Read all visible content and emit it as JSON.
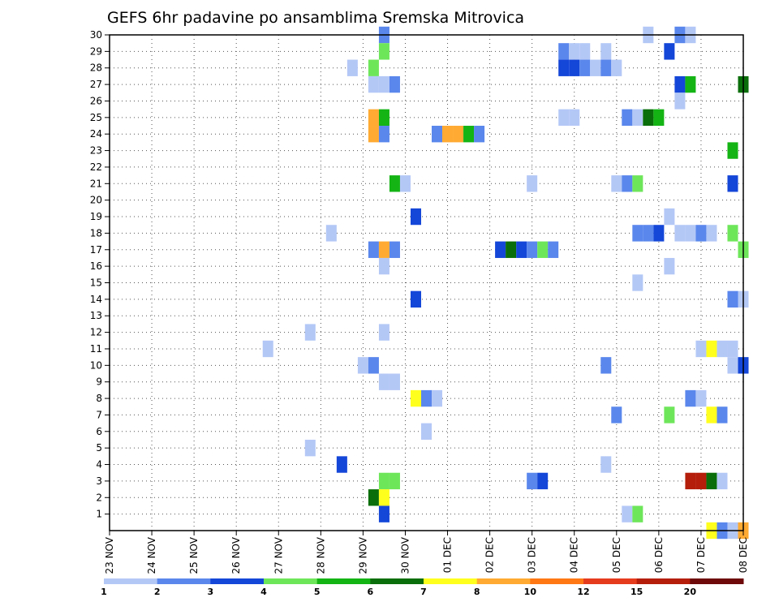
{
  "chart_data": {
    "type": "heatmap",
    "title": "GEFS 6hr padavine po ansamblima Sremska Mitrovica",
    "xlabel": "",
    "ylabel": "",
    "x_tick_labels": [
      "23 NOV",
      "24 NOV",
      "25 NOV",
      "26 NOV",
      "27 NOV",
      "28 NOV",
      "29 NOV",
      "30 NOV",
      "01 DEC",
      "02 DEC",
      "03 DEC",
      "04 DEC",
      "05 DEC",
      "06 DEC",
      "07 DEC",
      "08 DEC"
    ],
    "y_tick_labels": [
      "1",
      "2",
      "3",
      "4",
      "5",
      "6",
      "7",
      "8",
      "9",
      "10",
      "11",
      "12",
      "13",
      "14",
      "15",
      "16",
      "17",
      "18",
      "19",
      "20",
      "21",
      "22",
      "23",
      "24",
      "25",
      "26",
      "27",
      "28",
      "29",
      "30"
    ],
    "x_range_days": [
      0,
      15
    ],
    "y_range_members": [
      0,
      30
    ],
    "grid": true,
    "colorbar": {
      "labels": [
        "1",
        "2",
        "3",
        "4",
        "5",
        "6",
        "7",
        "8",
        "10",
        "12",
        "15",
        "20"
      ],
      "colors": [
        "#b4c8f6",
        "#5a87ec",
        "#1446d8",
        "#6ee65a",
        "#14b414",
        "#0a6e0a",
        "#ffff1e",
        "#ffaa32",
        "#ff7814",
        "#e63c1e",
        "#b41e0a",
        "#6e0a0a"
      ]
    },
    "cell_value_units": "mm / 6h (class lower bound)",
    "cells": [
      {
        "d": 6.5,
        "m": 30,
        "v": 2
      },
      {
        "d": 6.5,
        "m": 29,
        "v": 4
      },
      {
        "d": 5.75,
        "m": 28,
        "v": 1
      },
      {
        "d": 6.25,
        "m": 28,
        "v": 4
      },
      {
        "d": 6.25,
        "m": 27,
        "v": 1
      },
      {
        "d": 6.5,
        "m": 27,
        "v": 1
      },
      {
        "d": 6.75,
        "m": 27,
        "v": 2
      },
      {
        "d": 6.25,
        "m": 25,
        "v": 8
      },
      {
        "d": 6.5,
        "m": 25,
        "v": 5
      },
      {
        "d": 6.25,
        "m": 24,
        "v": 8
      },
      {
        "d": 6.5,
        "m": 24,
        "v": 2
      },
      {
        "d": 7.75,
        "m": 24,
        "v": 2
      },
      {
        "d": 8.0,
        "m": 24,
        "v": 8
      },
      {
        "d": 8.25,
        "m": 24,
        "v": 8
      },
      {
        "d": 8.5,
        "m": 24,
        "v": 5
      },
      {
        "d": 8.75,
        "m": 24,
        "v": 2
      },
      {
        "d": 6.75,
        "m": 21,
        "v": 5
      },
      {
        "d": 7.0,
        "m": 21,
        "v": 1
      },
      {
        "d": 7.25,
        "m": 19,
        "v": 3
      },
      {
        "d": 5.25,
        "m": 18,
        "v": 1
      },
      {
        "d": 6.25,
        "m": 17,
        "v": 2
      },
      {
        "d": 6.5,
        "m": 17,
        "v": 8
      },
      {
        "d": 6.75,
        "m": 17,
        "v": 2
      },
      {
        "d": 6.5,
        "m": 16,
        "v": 1
      },
      {
        "d": 7.25,
        "m": 14,
        "v": 3
      },
      {
        "d": 4.75,
        "m": 12,
        "v": 1
      },
      {
        "d": 6.5,
        "m": 12,
        "v": 1
      },
      {
        "d": 3.75,
        "m": 11,
        "v": 1
      },
      {
        "d": 6.0,
        "m": 10,
        "v": 1
      },
      {
        "d": 6.25,
        "m": 10,
        "v": 2
      },
      {
        "d": 6.5,
        "m": 9,
        "v": 1
      },
      {
        "d": 6.75,
        "m": 9,
        "v": 1
      },
      {
        "d": 7.25,
        "m": 8,
        "v": 7
      },
      {
        "d": 7.5,
        "m": 8,
        "v": 2
      },
      {
        "d": 7.75,
        "m": 8,
        "v": 1
      },
      {
        "d": 7.5,
        "m": 6,
        "v": 1
      },
      {
        "d": 4.75,
        "m": 5,
        "v": 1
      },
      {
        "d": 5.5,
        "m": 4,
        "v": 3
      },
      {
        "d": 6.5,
        "m": 3,
        "v": 4
      },
      {
        "d": 6.75,
        "m": 3,
        "v": 4
      },
      {
        "d": 6.25,
        "m": 2,
        "v": 6
      },
      {
        "d": 6.5,
        "m": 2,
        "v": 7
      },
      {
        "d": 6.5,
        "m": 1,
        "v": 3
      },
      {
        "d": 9.25,
        "m": 17,
        "v": 3
      },
      {
        "d": 9.5,
        "m": 17,
        "v": 6
      },
      {
        "d": 9.75,
        "m": 17,
        "v": 3
      },
      {
        "d": 10.0,
        "m": 17,
        "v": 2
      },
      {
        "d": 10.25,
        "m": 17,
        "v": 4
      },
      {
        "d": 10.5,
        "m": 17,
        "v": 2
      },
      {
        "d": 10.0,
        "m": 3,
        "v": 2
      },
      {
        "d": 10.25,
        "m": 3,
        "v": 3
      },
      {
        "d": 10.0,
        "m": 21,
        "v": 1
      },
      {
        "d": 10.75,
        "m": 29,
        "v": 2
      },
      {
        "d": 11.0,
        "m": 29,
        "v": 1
      },
      {
        "d": 11.25,
        "m": 29,
        "v": 1
      },
      {
        "d": 11.75,
        "m": 29,
        "v": 1
      },
      {
        "d": 10.75,
        "m": 28,
        "v": 3
      },
      {
        "d": 11.0,
        "m": 28,
        "v": 3
      },
      {
        "d": 11.25,
        "m": 28,
        "v": 2
      },
      {
        "d": 11.5,
        "m": 28,
        "v": 1
      },
      {
        "d": 11.75,
        "m": 28,
        "v": 2
      },
      {
        "d": 12.0,
        "m": 28,
        "v": 1
      },
      {
        "d": 10.75,
        "m": 25,
        "v": 1
      },
      {
        "d": 11.0,
        "m": 25,
        "v": 1
      },
      {
        "d": 11.75,
        "m": 10,
        "v": 2
      },
      {
        "d": 11.75,
        "m": 4,
        "v": 1
      },
      {
        "d": 12.25,
        "m": 25,
        "v": 2
      },
      {
        "d": 12.5,
        "m": 25,
        "v": 1
      },
      {
        "d": 12.75,
        "m": 25,
        "v": 6
      },
      {
        "d": 13.0,
        "m": 25,
        "v": 5
      },
      {
        "d": 12.0,
        "m": 21,
        "v": 1
      },
      {
        "d": 12.25,
        "m": 21,
        "v": 2
      },
      {
        "d": 12.5,
        "m": 21,
        "v": 4
      },
      {
        "d": 12.5,
        "m": 18,
        "v": 2
      },
      {
        "d": 12.75,
        "m": 18,
        "v": 2
      },
      {
        "d": 13.0,
        "m": 18,
        "v": 3
      },
      {
        "d": 12.5,
        "m": 15,
        "v": 1
      },
      {
        "d": 12.0,
        "m": 7,
        "v": 2
      },
      {
        "d": 12.25,
        "m": 1,
        "v": 1
      },
      {
        "d": 12.5,
        "m": 1,
        "v": 4
      },
      {
        "d": 13.25,
        "m": 7,
        "v": 4
      },
      {
        "d": 12.75,
        "m": 30,
        "v": 1
      },
      {
        "d": 13.5,
        "m": 30,
        "v": 2
      },
      {
        "d": 13.75,
        "m": 30,
        "v": 1
      },
      {
        "d": 13.25,
        "m": 29,
        "v": 3
      },
      {
        "d": 13.5,
        "m": 27,
        "v": 3
      },
      {
        "d": 13.75,
        "m": 27,
        "v": 5
      },
      {
        "d": 13.5,
        "m": 26,
        "v": 1
      },
      {
        "d": 13.25,
        "m": 19,
        "v": 1
      },
      {
        "d": 13.5,
        "m": 18,
        "v": 1
      },
      {
        "d": 13.75,
        "m": 18,
        "v": 1
      },
      {
        "d": 14.0,
        "m": 18,
        "v": 2
      },
      {
        "d": 14.25,
        "m": 18,
        "v": 1
      },
      {
        "d": 13.25,
        "m": 16,
        "v": 1
      },
      {
        "d": 14.75,
        "m": 23,
        "v": 5
      },
      {
        "d": 14.75,
        "m": 21,
        "v": 3
      },
      {
        "d": 14.75,
        "m": 18,
        "v": 4
      },
      {
        "d": 14.75,
        "m": 14,
        "v": 2
      },
      {
        "d": 14.0,
        "m": 11,
        "v": 1
      },
      {
        "d": 14.25,
        "m": 11,
        "v": 7
      },
      {
        "d": 14.5,
        "m": 11,
        "v": 1
      },
      {
        "d": 14.75,
        "m": 11,
        "v": 1
      },
      {
        "d": 14.75,
        "m": 10,
        "v": 1
      },
      {
        "d": 13.75,
        "m": 8,
        "v": 2
      },
      {
        "d": 14.0,
        "m": 8,
        "v": 1
      },
      {
        "d": 14.25,
        "m": 7,
        "v": 7
      },
      {
        "d": 14.5,
        "m": 7,
        "v": 2
      },
      {
        "d": 13.75,
        "m": 3,
        "v": 15
      },
      {
        "d": 14.0,
        "m": 3,
        "v": 15
      },
      {
        "d": 14.25,
        "m": 3,
        "v": 6
      },
      {
        "d": 14.5,
        "m": 3,
        "v": 1
      },
      {
        "d": 14.25,
        "m": 0,
        "v": 7
      },
      {
        "d": 14.5,
        "m": 0,
        "v": 2
      },
      {
        "d": 14.75,
        "m": 0,
        "v": 1
      },
      {
        "d": 15.0,
        "m": 27,
        "v": 6
      },
      {
        "d": 15.0,
        "m": 17,
        "v": 4
      },
      {
        "d": 15.0,
        "m": 14,
        "v": 1
      },
      {
        "d": 15.0,
        "m": 10,
        "v": 3
      },
      {
        "d": 15.0,
        "m": 0,
        "v": 8
      }
    ]
  }
}
